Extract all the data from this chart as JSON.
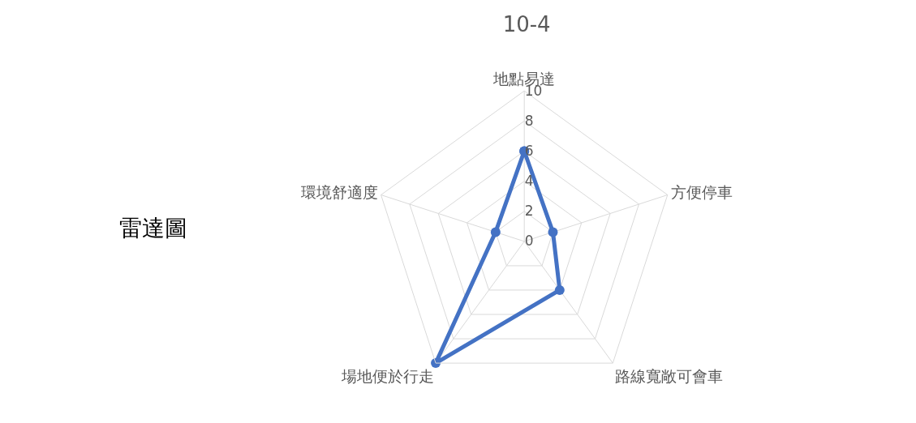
{
  "chart_data": {
    "type": "radar",
    "title": "10-4",
    "annotations": [
      "雷達圖"
    ],
    "categories": [
      "地點易達",
      "方便停車",
      "路線寬敞可會車",
      "場地便於行走",
      "環境舒適度"
    ],
    "series": [
      {
        "color": "#4472c4",
        "values": [
          6,
          2,
          4,
          10,
          2
        ]
      }
    ],
    "ylim": [
      0,
      10
    ],
    "yticks": [
      0,
      2,
      4,
      6,
      8,
      10
    ],
    "grid": true,
    "marker": "circle",
    "line_style": "solid"
  }
}
